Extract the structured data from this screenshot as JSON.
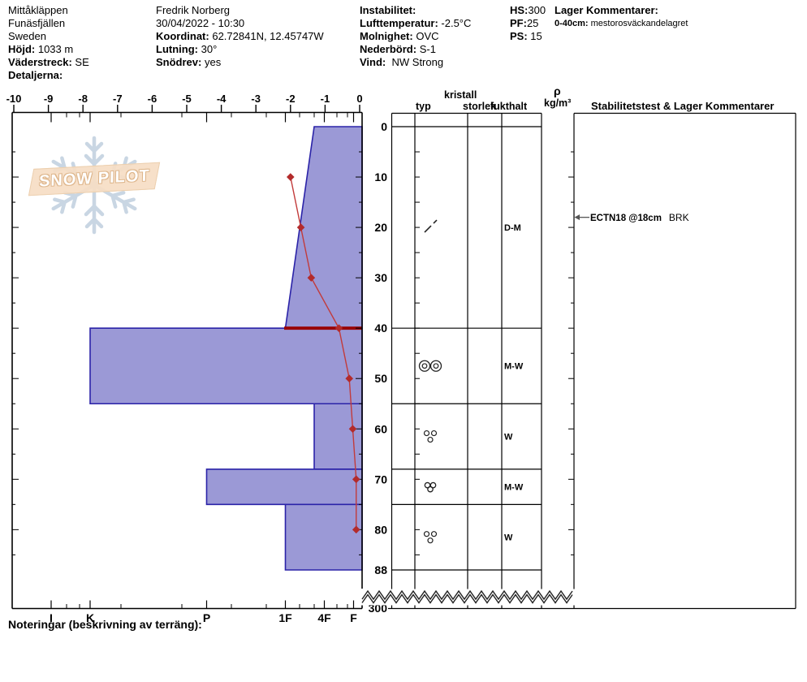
{
  "header": {
    "site": {
      "name": "Mittåkläppen",
      "region": "Funäsfjällen",
      "country": "Sweden",
      "elevation_label": "Höjd:",
      "elevation": "1033 m",
      "aspect_label": "Väderstreck:",
      "aspect": "SE",
      "details_label": "Detaljerna:"
    },
    "observer": {
      "name": "Fredrik Norberg",
      "datetime": "30/04/2022 - 10:30",
      "coord_label": "Koordinat:",
      "coord": "62.72841N, 12.45747W",
      "slope_label": "Lutning:",
      "slope": "30°",
      "drift_label": "Snödrev:",
      "drift": "yes"
    },
    "conditions": {
      "instability_label": "Instabilitet:",
      "airtemp_label": "Lufttemperatur:",
      "airtemp": "-2.5°C",
      "sky_label": "Molnighet:",
      "sky": "OVC",
      "precip_label": "Nederbörd:",
      "precip": "S-1",
      "wind_label": "Vind:",
      "wind": "NW Strong"
    },
    "snowpack": {
      "hs_label": "HS:",
      "hs": "300",
      "pf_label": "PF:",
      "pf": "25",
      "ps_label": "PS:",
      "ps": "15"
    },
    "layer_comments": {
      "title": "Lager Kommentarer:",
      "range_label": "0-40cm:",
      "text": "mestorosväckandelagret"
    }
  },
  "logo": {
    "text": "SNOW PILOT"
  },
  "table": {
    "headers": {
      "kristall": "kristall",
      "typ": "typ",
      "storlek": "storlek",
      "fukthalt": "fukthalt",
      "rho": "ρ",
      "rho_unit": "kg/m³",
      "stability": "Stabilitetstest & Lager Kommentarer"
    }
  },
  "footer": {
    "noteringar_label": "Noteringar (beskrivning av terräng):"
  },
  "chart_data": {
    "type": "snow-profile",
    "depth_axis": {
      "unit": "cm",
      "labels": [
        "0",
        "10",
        "20",
        "30",
        "40",
        "50",
        "60",
        "70",
        "80",
        "88"
      ],
      "label_depths": [
        0,
        10,
        20,
        30,
        40,
        50,
        60,
        70,
        80,
        88
      ],
      "break_label": "300",
      "total_snow_height_cm": 300
    },
    "temp_axis": {
      "unit": "°C",
      "tick_labels": [
        "-10",
        "-9",
        "-8",
        "-7",
        "-6",
        "-5",
        "-4",
        "-3",
        "-2",
        "-1",
        "0"
      ],
      "tick_values": [
        -10,
        -9,
        -8,
        -7,
        -6,
        -5,
        -4,
        -3,
        -2,
        -1,
        0
      ]
    },
    "hardness_scale": {
      "axis_labels": [
        "I",
        "K",
        "P",
        "1F",
        "4F",
        "F"
      ],
      "positions": {
        "I": 63,
        "K": 111,
        "P": 254.5,
        "1F": 351.5,
        "4F": 399.5,
        "F": 435.5,
        "4F+": 387
      },
      "minor_ticks_x": [
        82,
        98,
        149,
        224,
        285,
        328,
        369,
        387,
        415,
        428
      ]
    },
    "layer_boundaries_cm": [
      0,
      40,
      55,
      68,
      75,
      88
    ],
    "layers": [
      {
        "top_cm": 0,
        "bottom_cm": 40,
        "hardness_top": "4F+",
        "hardness_bottom": "1F",
        "grain_type": "DF",
        "grain_symbol": "slash",
        "moisture": "D-M"
      },
      {
        "top_cm": 40,
        "bottom_cm": 55,
        "hardness": "K",
        "grain_type": "MFcr",
        "grain_symbol": "double-bullseye",
        "moisture": "M-W"
      },
      {
        "top_cm": 55,
        "bottom_cm": 68,
        "hardness": "4F+",
        "grain_type": "MF",
        "grain_symbol": "three-circles",
        "moisture": "W"
      },
      {
        "top_cm": 68,
        "bottom_cm": 75,
        "hardness": "P",
        "grain_type": "MFcl",
        "grain_symbol": "cluster-circles",
        "moisture": "M-W"
      },
      {
        "top_cm": 75,
        "bottom_cm": 88,
        "hardness": "1F",
        "grain_type": "MF",
        "grain_symbol": "three-circles",
        "moisture": "W"
      }
    ],
    "layer_of_concern": {
      "depth_cm": 40
    },
    "temperature_profile": [
      {
        "depth_cm": 10,
        "temp_c": -2.0
      },
      {
        "depth_cm": 20,
        "temp_c": -1.7
      },
      {
        "depth_cm": 30,
        "temp_c": -1.4
      },
      {
        "depth_cm": 40,
        "temp_c": -0.6
      },
      {
        "depth_cm": 50,
        "temp_c": -0.3
      },
      {
        "depth_cm": 60,
        "temp_c": -0.2
      },
      {
        "depth_cm": 70,
        "temp_c": -0.1
      },
      {
        "depth_cm": 80,
        "temp_c": -0.1
      }
    ],
    "stability_tests": [
      {
        "result": "ECTN18 @18cm",
        "score": "BRK",
        "depth_cm": 18
      }
    ],
    "colors": {
      "layer_fill": "#9b99d6",
      "layer_border": "#2b23a8",
      "temp_line": "#c23b3b",
      "temp_marker": "#b32b2b",
      "flag_line": "#990000",
      "logo_band": "#f6ddc4",
      "snowflake": "#c9d6e3"
    }
  }
}
